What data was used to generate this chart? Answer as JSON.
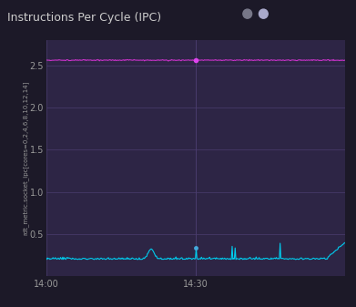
{
  "title": "Instructions Per Cycle (IPC)",
  "ylabel": "rdt_metric.socket_ipc[cores=0,2,4,6,8,10,12,14]",
  "bg_color": "#1c1928",
  "plot_bg_color": "#2d2545",
  "grid_color": "#4a3d6e",
  "title_color": "#cccccc",
  "tick_color": "#999999",
  "ylim": [
    0,
    2.8
  ],
  "yticks": [
    0.5,
    1.0,
    1.5,
    2.0,
    2.5
  ],
  "xtick_labels": [
    "14:00",
    "14:30"
  ],
  "line1_color": "#cc33cc",
  "line2_color": "#00ccee",
  "line1_value": 2.56,
  "line2_base": 0.2,
  "marker_color1": "#dd44ee",
  "marker_color2": "#44aadd",
  "legend_dot1_color": "#777788",
  "legend_dot2_color": "#aaaacc",
  "title_fontsize": 9,
  "tick_fontsize": 7,
  "ylabel_fontsize": 5
}
